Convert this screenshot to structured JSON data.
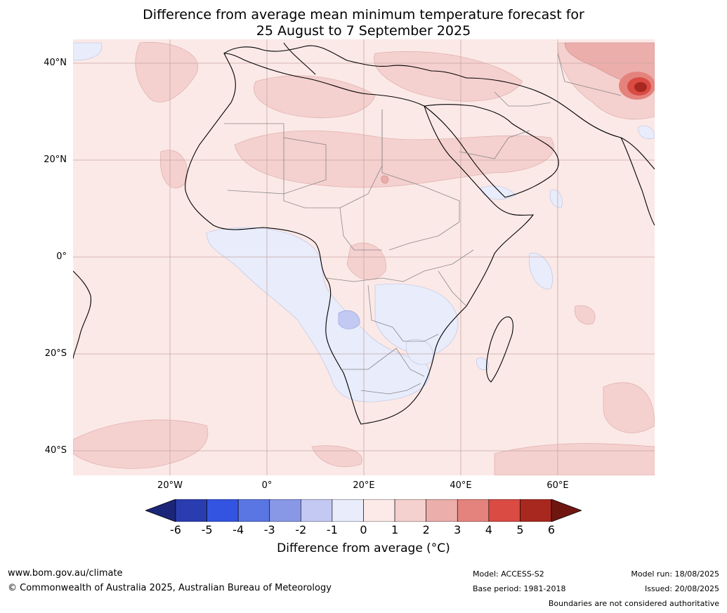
{
  "title": {
    "line1": "Difference from average mean minimum temperature forecast for",
    "line2": "25 August to 7 September 2025"
  },
  "map": {
    "latitude_labels": [
      "40°N",
      "20°N",
      "0°",
      "20°S",
      "40°S"
    ],
    "longitude_labels": [
      "20°W",
      "0°",
      "20°E",
      "40°E",
      "60°E"
    ],
    "colors": {
      "neutral_pos": "#fbe9e7",
      "pos_1_2": "#f4d0ce",
      "pos_2_3": "#ecaeab",
      "neg_0_1": "#e8ecfb",
      "neg_1_2": "#c2c9f3",
      "border": "#888888",
      "coast": "#000000"
    }
  },
  "colorbar": {
    "ticks": [
      "-6",
      "-5",
      "-4",
      "-3",
      "-2",
      "-1",
      "0",
      "1",
      "2",
      "3",
      "4",
      "5",
      "6"
    ],
    "colors": [
      "#1c2678",
      "#2a3db0",
      "#3354e0",
      "#5a76e2",
      "#8898e6",
      "#c3c9f2",
      "#e8ecfb",
      "#fbeae8",
      "#f4d0ce",
      "#ecaeab",
      "#e4837d",
      "#d94b43",
      "#a8281f",
      "#701611"
    ],
    "label": "Difference from average (°C)"
  },
  "footer": {
    "website": "www.bom.gov.au/climate",
    "copyright": "© Commonwealth of Australia 2025, Australian Bureau of Meteorology",
    "model": "Model: ACCESS-S2",
    "base_period": "Base period: 1981-2018",
    "model_run": "Model run: 18/08/2025",
    "issued": "Issued: 20/08/2025",
    "disclaimer": "Boundaries are not considered authoritative"
  }
}
